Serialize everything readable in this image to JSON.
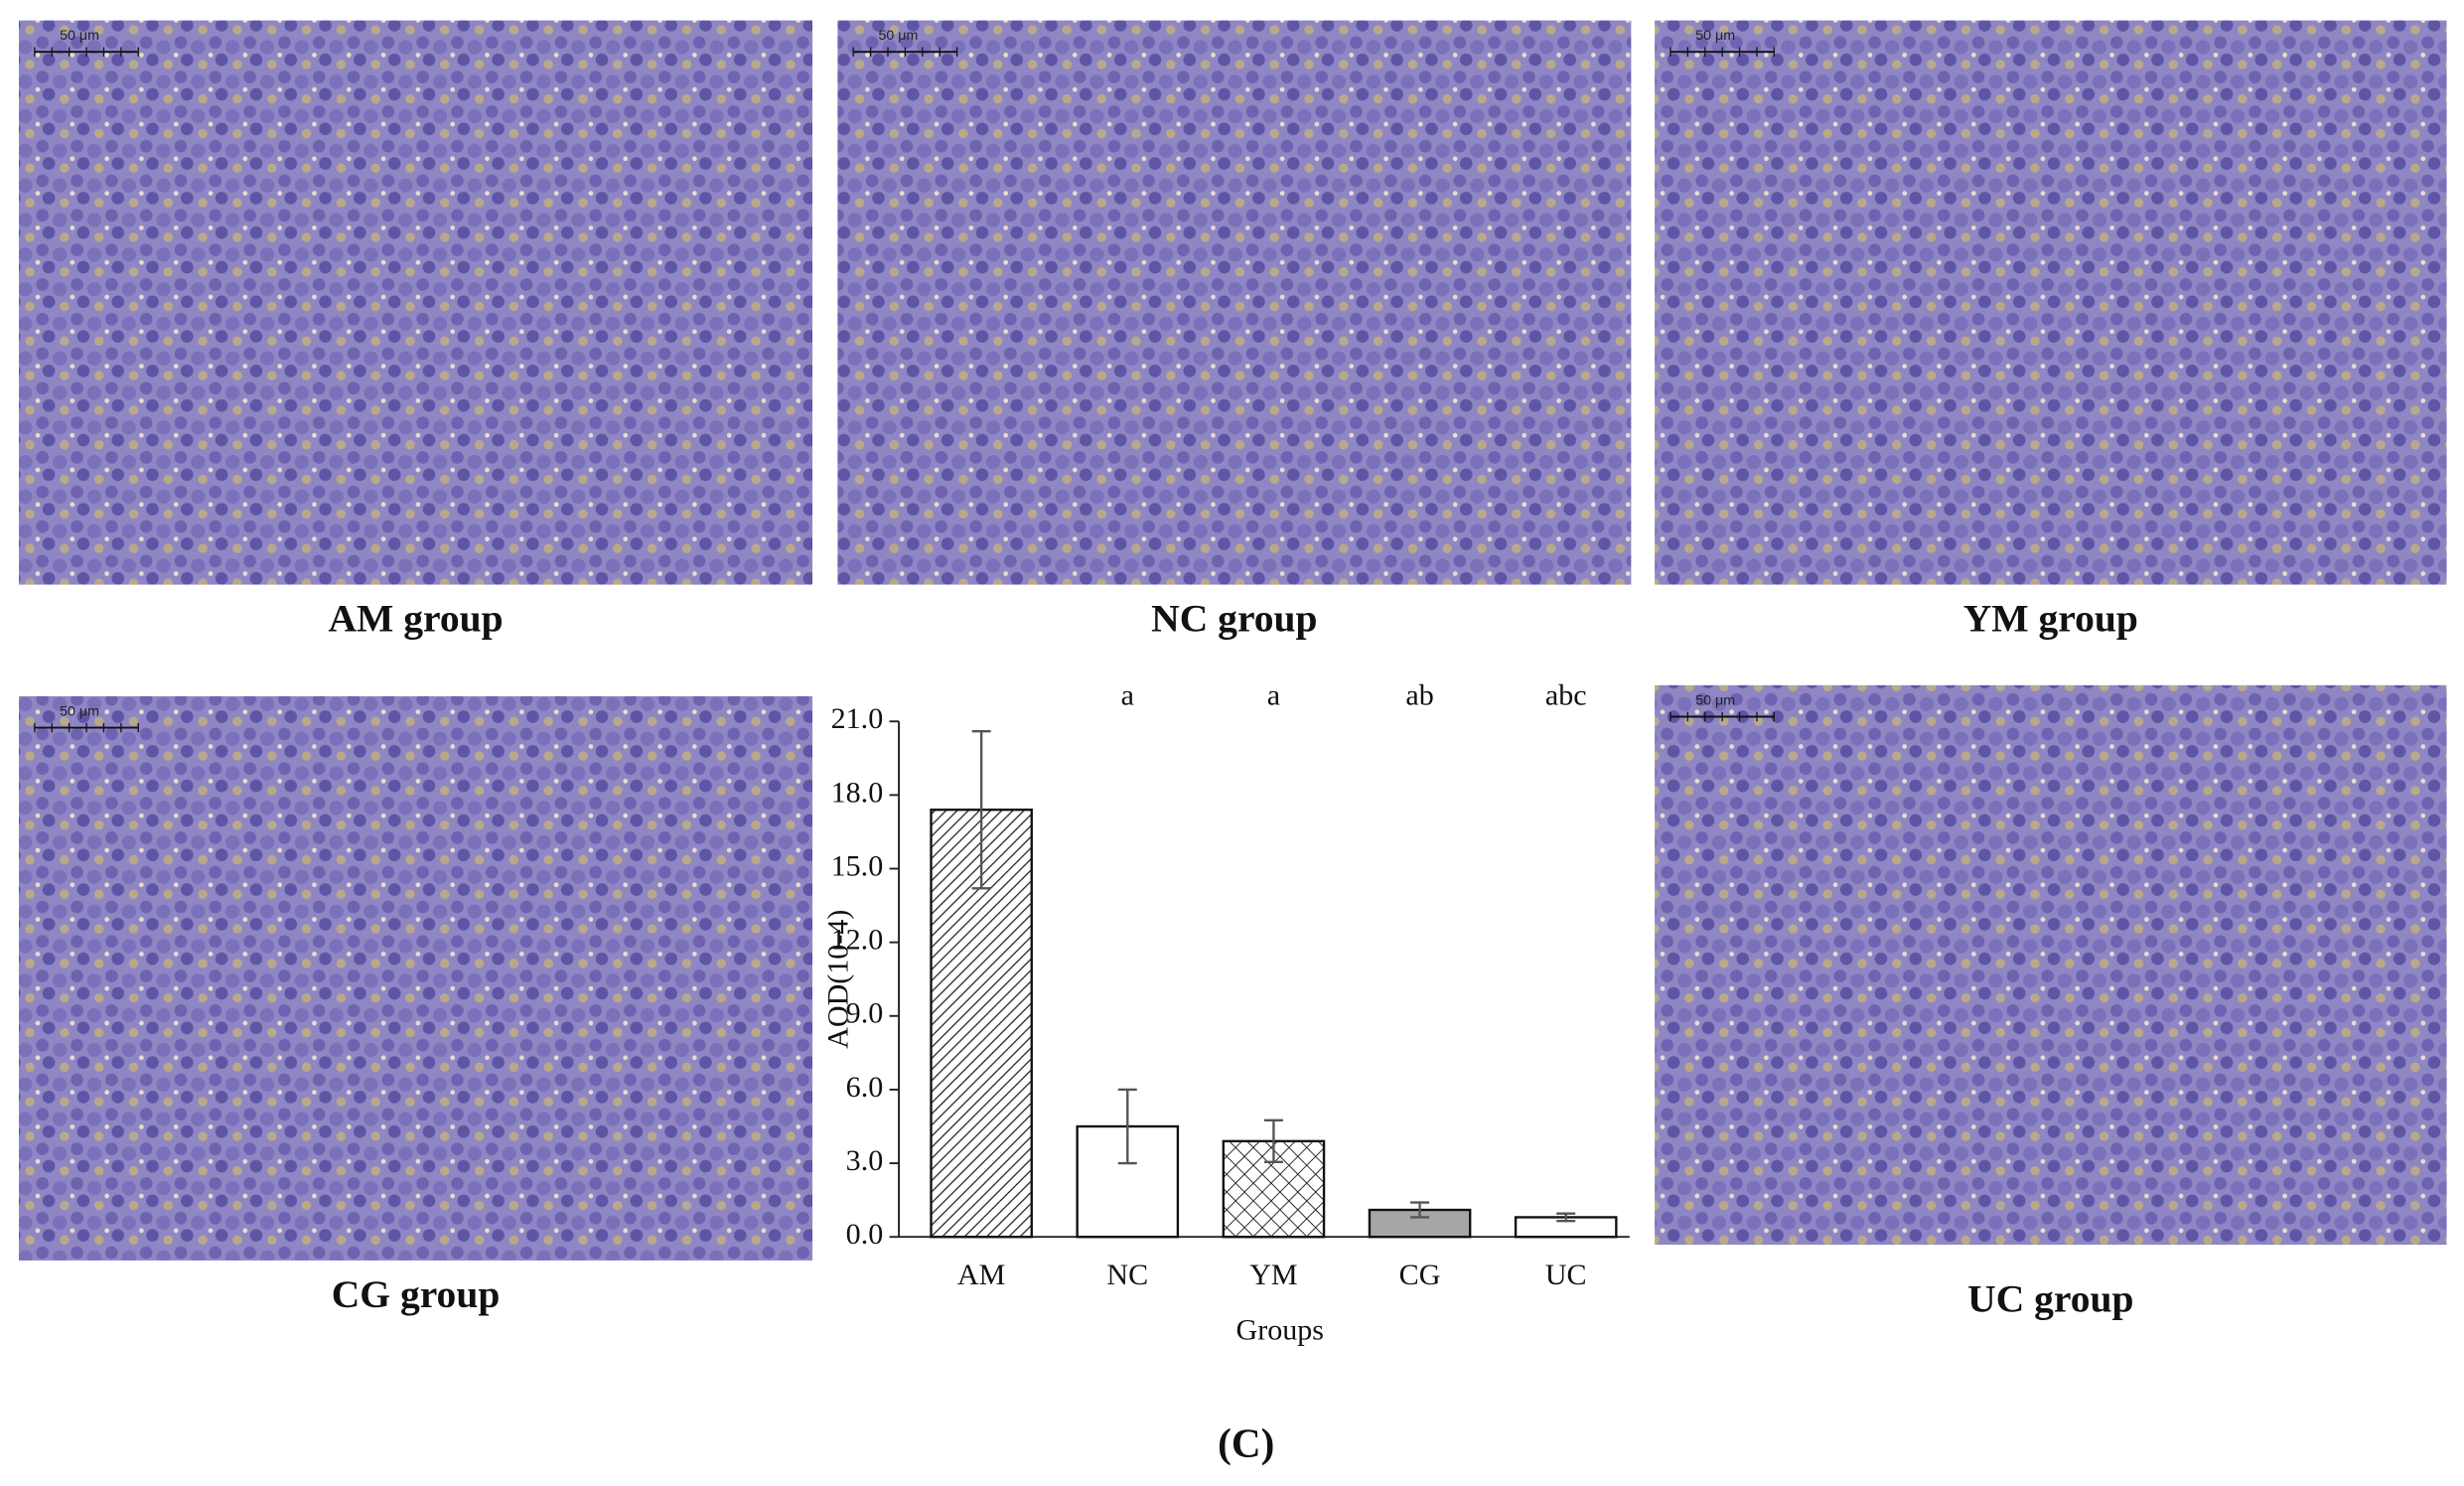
{
  "panels": [
    {
      "caption": "AM group",
      "scale_bar": "50 μm"
    },
    {
      "caption": "NC group",
      "scale_bar": "50 μm"
    },
    {
      "caption": "YM group",
      "scale_bar": "50 μm"
    },
    {
      "caption": "CG group",
      "scale_bar": "50 μm"
    },
    {
      "caption": "UC group",
      "scale_bar": "50 μm"
    }
  ],
  "chart_data": {
    "type": "bar",
    "categories": [
      "AM",
      "NC",
      "YM",
      "CG",
      "UC"
    ],
    "values": [
      17.4,
      4.5,
      3.9,
      1.1,
      0.8
    ],
    "errors": [
      3.2,
      1.5,
      0.85,
      0.3,
      0.15
    ],
    "significance": [
      null,
      "a",
      "a",
      "ab",
      "abc"
    ],
    "colors": [
      "#ffffff",
      "#ffffff",
      "#ffffff",
      "#a6a6a6",
      "#ffffff"
    ],
    "patterns": [
      "diagonal",
      "none",
      "crosshatch",
      "none",
      "none"
    ],
    "ylabel": "AOD(10-4)",
    "xlabel": "Groups",
    "ylim": [
      0,
      21
    ],
    "yticks": [
      {
        "value": 0,
        "label": "0.0"
      },
      {
        "value": 3,
        "label": "3.0"
      },
      {
        "value": 6,
        "label": "6.0"
      },
      {
        "value": 9,
        "label": "9.0"
      },
      {
        "value": 12,
        "label": "12.0"
      },
      {
        "value": 15,
        "label": "15.0"
      },
      {
        "value": 18,
        "label": "18.0"
      },
      {
        "value": 21,
        "label": "21.0"
      }
    ]
  },
  "figure_label": "(C)"
}
